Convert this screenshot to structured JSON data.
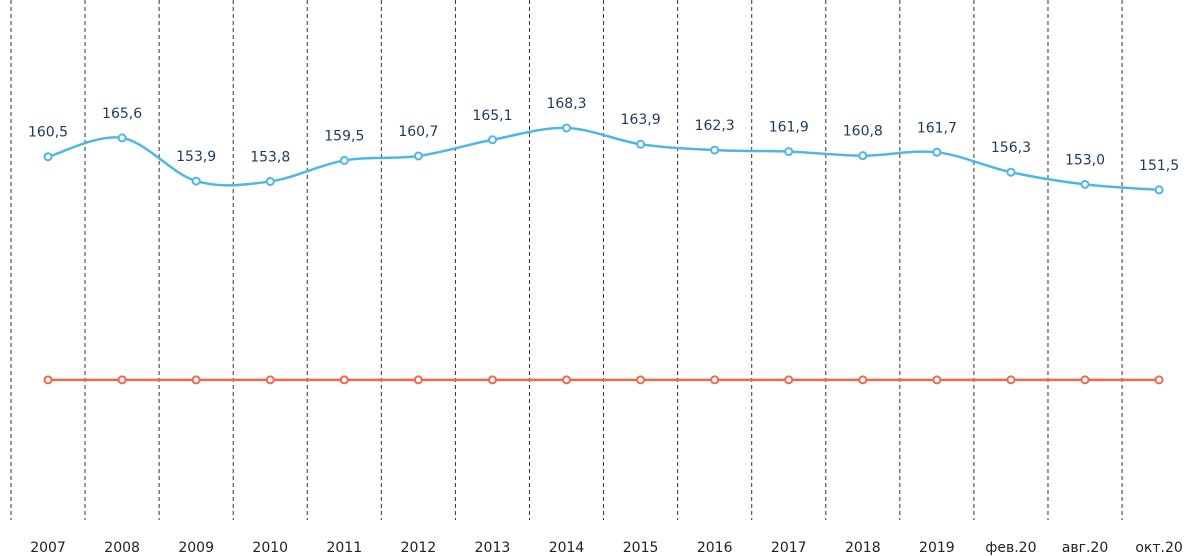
{
  "chart_data": {
    "type": "line",
    "categories": [
      "2007",
      "2008",
      "2009",
      "2010",
      "2011",
      "2012",
      "2013",
      "2014",
      "2015",
      "2016",
      "2017",
      "2018",
      "2019",
      "фев.20",
      "авг.20",
      "окт.20"
    ],
    "series": [
      {
        "color": "#4db8e2",
        "values": [
          160.5,
          165.6,
          153.9,
          153.8,
          159.5,
          160.7,
          165.1,
          168.3,
          163.9,
          162.3,
          161.9,
          160.8,
          161.7,
          156.3,
          153.0,
          151.5
        ],
        "value_labels": [
          "160,5",
          "165,6",
          "153,9",
          "153,8",
          "159,5",
          "160,7",
          "165,1",
          "168,3",
          "163,9",
          "162,3",
          "161,9",
          "160,8",
          "161,7",
          "156,3",
          "153,0",
          "151,5"
        ]
      },
      {
        "color": "#ee6a4c",
        "values": [
          100,
          100,
          100,
          100,
          100,
          100,
          100,
          100,
          100,
          100,
          100,
          100,
          100,
          100,
          100,
          100
        ]
      }
    ],
    "ylim": [
      62,
      203
    ]
  }
}
